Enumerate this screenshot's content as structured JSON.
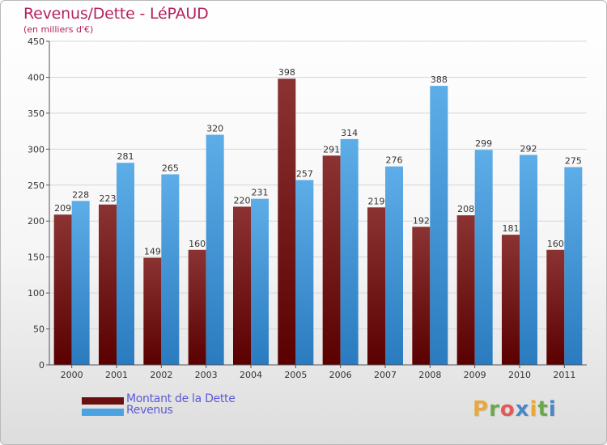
{
  "title": "Revenus/Dette - LéPAUD",
  "subtitle": "(en milliers d'€)",
  "logo": {
    "text": "Proxiti",
    "letter_colors": [
      "#e8a93a",
      "#6aa84f",
      "#e05a5a",
      "#4a86c8",
      "#e8a93a",
      "#6aa84f",
      "#4a86c8"
    ]
  },
  "colors": {
    "dette_top": "#8b3333",
    "dette_bottom": "#5a0000",
    "revenus_top": "#5dade8",
    "revenus_bottom": "#2a7bbf",
    "axis": "#555555",
    "grid": "#d6d6d6",
    "text": "#333333"
  },
  "legend": [
    {
      "label": "Montant de la Dette",
      "color": "#6b1010"
    },
    {
      "label": "Revenus",
      "color": "#4aa3e0"
    }
  ],
  "chart_data": {
    "type": "bar",
    "title": "Revenus/Dette - LéPAUD",
    "subtitle": "(en milliers d'€)",
    "categories": [
      "2000",
      "2001",
      "2002",
      "2003",
      "2004",
      "2005",
      "2006",
      "2007",
      "2008",
      "2009",
      "2010",
      "2011"
    ],
    "series": [
      {
        "name": "Montant de la Dette",
        "values": [
          209,
          223,
          149,
          160,
          220,
          398,
          291,
          219,
          192,
          208,
          181,
          160
        ]
      },
      {
        "name": "Revenus",
        "values": [
          228,
          281,
          265,
          320,
          231,
          257,
          314,
          276,
          388,
          299,
          292,
          275
        ]
      }
    ],
    "ylim": [
      0,
      450
    ],
    "yticks": [
      0,
      50,
      100,
      150,
      200,
      250,
      300,
      350,
      400,
      450
    ],
    "grid": true,
    "legend_position": "bottom-left"
  }
}
